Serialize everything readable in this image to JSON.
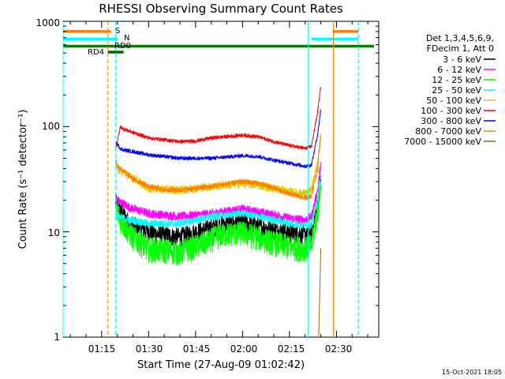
{
  "colors": {
    "3-6": "#000000",
    "6-12": "#ff00ff",
    "12-25": "#00ff00",
    "25-50": "#00ffff",
    "50-100": "#ddcc00",
    "100-300": "#ff0000",
    "300-800": "#0000ff",
    "800-7000": "#ff8000",
    "7000-15000": "#8b6b00",
    "s_flag": "#ff8000",
    "n_flag": "#00ffff",
    "rd_flag": "#008000",
    "rd4_flag": "#006400"
  },
  "footer": {
    "timestamp": "15-Oct-2021 18:05"
  },
  "chart_data": {
    "type": "line",
    "title": "RHESSI Observing Summary Count Rates",
    "xlabel": "Start Time (27-Aug-09 01:02:42)",
    "ylabel": "Count Rate (s⁻¹ detector⁻¹)",
    "y_scale": "log",
    "ylim": [
      1,
      1000
    ],
    "xlim": [
      "01:02:42",
      "02:43:30"
    ],
    "yticks": [
      {
        "value": 1,
        "label": "1"
      },
      {
        "value": 10,
        "label": "10"
      },
      {
        "value": 100,
        "label": "100"
      },
      {
        "value": 1000,
        "label": "1000"
      }
    ],
    "xticks": [
      {
        "value": "01:15",
        "label": "01:15"
      },
      {
        "value": "01:30",
        "label": "01:30"
      },
      {
        "value": "01:45",
        "label": "01:45"
      },
      {
        "value": "02:00",
        "label": "02:00"
      },
      {
        "value": "02:15",
        "label": "02:15"
      },
      {
        "value": "02:30",
        "label": "02:30"
      }
    ],
    "legend": {
      "header": [
        "Det 1,3,4,5,6,9,",
        "FDecim 1, Att 0"
      ],
      "position": "right",
      "entries": [
        {
          "label": "3 - 6 keV",
          "key": "3-6"
        },
        {
          "label": "6 - 12 keV",
          "key": "6-12"
        },
        {
          "label": "12 - 25 keV",
          "key": "12-25"
        },
        {
          "label": "25 - 50 keV",
          "key": "25-50"
        },
        {
          "label": "50 - 100 keV",
          "key": "50-100"
        },
        {
          "label": "100 - 300 keV",
          "key": "100-300"
        },
        {
          "label": "300 - 800 keV",
          "key": "300-800"
        },
        {
          "label": "800 - 7000 keV",
          "key": "800-7000"
        },
        {
          "label": "7000 - 15000 keV",
          "key": "7000-15000"
        }
      ]
    },
    "flags": [
      {
        "label": "S",
        "key": "s_flag",
        "level": 800,
        "segments": [
          [
            "01:02:42",
            "01:18"
          ],
          [
            "02:29",
            "02:37"
          ]
        ]
      },
      {
        "label": "N",
        "key": "n_flag",
        "level": 680,
        "segments": [
          [
            "01:02:42",
            "01:20"
          ],
          [
            "02:22",
            "02:37"
          ]
        ]
      },
      {
        "label": "RD0",
        "key": "rd_flag",
        "level": 580,
        "segments": [
          [
            "01:02:42",
            "02:42"
          ]
        ]
      },
      {
        "label": "RD4",
        "key": "rd4_flag",
        "level": 510,
        "segments": [
          [
            "01:17",
            "01:22"
          ]
        ]
      }
    ],
    "vlines": [
      {
        "time": "01:02:42",
        "key": "25-50",
        "style": "solid"
      },
      {
        "time": "01:17",
        "key": "800-7000",
        "style": "dashed"
      },
      {
        "time": "01:19:30",
        "key": "25-50",
        "style": "dashed"
      },
      {
        "time": "02:21",
        "key": "25-50",
        "style": "solid"
      },
      {
        "time": "02:29",
        "key": "800-7000",
        "style": "solid"
      },
      {
        "time": "02:37",
        "key": "800-7000",
        "style": "dashed"
      },
      {
        "time": "02:37",
        "key": "25-50",
        "style": "dashed"
      }
    ],
    "series": [
      {
        "name": "3 - 6 keV",
        "key": "3-6",
        "noise": 0.13,
        "x": [
          "01:19:30",
          "01:21",
          "01:24",
          "01:27",
          "01:33",
          "01:40",
          "01:50",
          "01:55",
          "02:00",
          "02:07",
          "02:12",
          "02:17",
          "02:22",
          "02:24",
          "02:25"
        ],
        "y": [
          19,
          16,
          12,
          11,
          9.5,
          9,
          11,
          12,
          12.5,
          11,
          10.2,
          9.8,
          9.5,
          18,
          35
        ]
      },
      {
        "name": "6 - 12 keV",
        "key": "6-12",
        "noise": 0.06,
        "x": [
          "01:19:30",
          "01:20",
          "01:24",
          "01:30",
          "01:40",
          "01:50",
          "02:00",
          "02:05",
          "02:10",
          "02:15",
          "02:20",
          "02:22",
          "02:24",
          "02:25"
        ],
        "y": [
          21,
          20,
          17,
          15,
          14,
          15,
          16.5,
          15.5,
          14.5,
          13.5,
          13,
          14,
          25,
          45
        ]
      },
      {
        "name": "12 - 25 keV",
        "key": "12-25",
        "noise": 0.17,
        "x": [
          "01:19:30",
          "01:21",
          "01:25",
          "01:30",
          "01:40",
          "01:48",
          "01:53",
          "02:00",
          "02:05",
          "02:10",
          "02:15",
          "02:20",
          "02:22",
          "02:24",
          "02:25"
        ],
        "y": [
          18,
          13,
          9,
          7,
          6.5,
          8,
          9.5,
          10,
          9,
          8,
          7.3,
          7,
          7.5,
          16,
          30
        ]
      },
      {
        "name": "25 - 50 keV",
        "key": "25-50",
        "noise": 0.05,
        "x": [
          "01:19:30",
          "01:20",
          "01:24",
          "01:30",
          "01:40",
          "01:50",
          "02:00",
          "02:05",
          "02:10",
          "02:15",
          "02:20",
          "02:22",
          "02:24",
          "02:25"
        ],
        "y": [
          14,
          14,
          13,
          12,
          12,
          14,
          15,
          14,
          13,
          12,
          11.5,
          12,
          20,
          35
        ]
      },
      {
        "name": "50 - 100 keV",
        "key": "50-100",
        "noise": 0.06,
        "x": [
          "01:19:30",
          "01:20",
          "01:23",
          "01:27",
          "01:30",
          "01:40",
          "01:50",
          "02:00",
          "02:05",
          "02:10",
          "02:15",
          "02:20",
          "02:22",
          "02:24",
          "02:25"
        ],
        "y": [
          45,
          40,
          35,
          30,
          26,
          25,
          27,
          29,
          28,
          26,
          24,
          23,
          25,
          45,
          80
        ]
      },
      {
        "name": "100 - 300 keV",
        "key": "100-300",
        "noise": 0.025,
        "x": [
          "01:19:30",
          "01:21",
          "01:22",
          "01:25",
          "01:30",
          "01:40",
          "01:45",
          "01:50",
          "02:00",
          "02:05",
          "02:10",
          "02:15",
          "02:20",
          "02:22",
          "02:24",
          "02:25"
        ],
        "y": [
          62,
          100,
          95,
          88,
          78,
          72,
          73,
          78,
          83,
          80,
          72,
          66,
          62,
          65,
          140,
          240
        ]
      },
      {
        "name": "300 - 800 keV",
        "key": "300-800",
        "noise": 0.025,
        "x": [
          "01:19:30",
          "01:20",
          "01:21",
          "01:22",
          "01:25",
          "01:30",
          "01:40",
          "01:50",
          "02:00",
          "02:05",
          "02:10",
          "02:15",
          "02:20",
          "02:22",
          "02:24",
          "02:25"
        ],
        "y": [
          70,
          68,
          62,
          60,
          58,
          54,
          50,
          50,
          53,
          52,
          48,
          45,
          42,
          43,
          85,
          145
        ]
      },
      {
        "name": "800 - 7000 keV",
        "key": "800-7000",
        "noise": 0.035,
        "x": [
          "01:19:30",
          "01:20",
          "01:22",
          "01:25",
          "01:30",
          "01:35",
          "01:40",
          "01:50",
          "02:00",
          "02:05",
          "02:10",
          "02:15",
          "02:20",
          "02:22",
          "02:24",
          "02:25"
        ],
        "y": [
          50,
          42,
          38,
          32,
          27,
          25,
          25,
          27,
          30,
          29,
          26,
          23,
          21,
          22,
          40,
          90
        ]
      },
      {
        "name": "7000 - 15000 keV",
        "key": "7000-15000",
        "noise": 0,
        "x": [
          "02:24:20",
          "02:25"
        ],
        "y": [
          1,
          7
        ]
      }
    ]
  }
}
